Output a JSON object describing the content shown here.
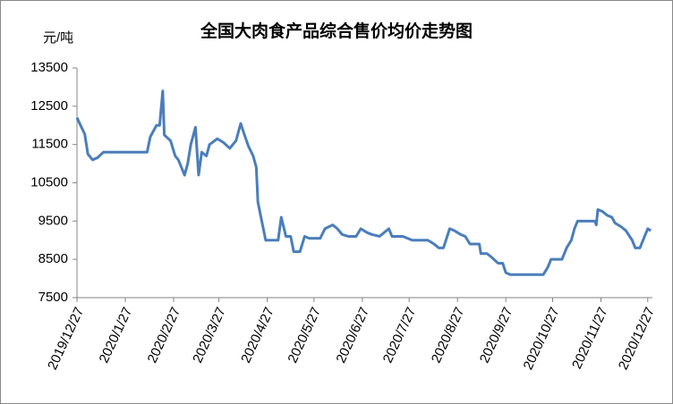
{
  "chart_data": {
    "type": "line",
    "title": "全国大肉食产品综合售价均价走势图",
    "y_label": "元/吨",
    "x": [
      "2019/12/27",
      "2020/1/1",
      "2020/1/3",
      "2020/1/6",
      "2020/1/9",
      "2020/1/13",
      "2020/2/10",
      "2020/2/12",
      "2020/2/16",
      "2020/2/18",
      "2020/2/20",
      "2020/2/21",
      "2020/2/25",
      "2020/2/28",
      "2020/3/1",
      "2020/3/3",
      "2020/3/5",
      "2020/3/7",
      "2020/3/9",
      "2020/3/12",
      "2020/3/14",
      "2020/3/16",
      "2020/3/19",
      "2020/3/21",
      "2020/3/26",
      "2020/3/30",
      "2020/4/3",
      "2020/4/7",
      "2020/4/10",
      "2020/4/12",
      "2020/4/15",
      "2020/4/18",
      "2020/4/20",
      "2020/4/21",
      "2020/4/23",
      "2020/4/24",
      "2020/4/26",
      "2020/5/4",
      "2020/5/6",
      "2020/5/9",
      "2020/5/12",
      "2020/5/14",
      "2020/5/18",
      "2020/5/21",
      "2020/5/24",
      "2020/5/31",
      "2020/6/3",
      "2020/6/8",
      "2020/6/11",
      "2020/6/14",
      "2020/6/18",
      "2020/6/23",
      "2020/6/26",
      "2020/6/30",
      "2020/7/3",
      "2020/7/8",
      "2020/7/14",
      "2020/7/16",
      "2020/7/23",
      "2020/7/29",
      "2020/8/8",
      "2020/8/12",
      "2020/8/15",
      "2020/8/18",
      "2020/8/22",
      "2020/8/25",
      "2020/8/29",
      "2020/9/1",
      "2020/9/4",
      "2020/9/10",
      "2020/9/11",
      "2020/9/15",
      "2020/9/18",
      "2020/9/22",
      "2020/9/25",
      "2020/9/27",
      "2020/9/30",
      "2020/10/21",
      "2020/10/24",
      "2020/10/26",
      "2020/11/2",
      "2020/11/5",
      "2020/11/8",
      "2020/11/10",
      "2020/11/12",
      "2020/11/23",
      "2020/11/24",
      "2020/11/25",
      "2020/11/28",
      "2020/12/1",
      "2020/12/4",
      "2020/12/6",
      "2020/12/10",
      "2020/12/13",
      "2020/12/17",
      "2020/12/19",
      "2020/12/22",
      "2020/12/25",
      "2020/12/27",
      "2020/12/29"
    ],
    "series": [
      {
        "color": "#4a7ebb",
        "values": [
          12200,
          11770,
          11250,
          11100,
          11150,
          11300,
          11300,
          11700,
          12000,
          12000,
          12900,
          11750,
          11600,
          11200,
          11100,
          10900,
          10700,
          11000,
          11500,
          11950,
          10700,
          11300,
          11200,
          11500,
          11650,
          11550,
          11400,
          11600,
          12050,
          11800,
          11450,
          11200,
          10900,
          10000,
          9600,
          9400,
          9000,
          9000,
          9600,
          9100,
          9100,
          8700,
          8700,
          9100,
          9050,
          9050,
          9300,
          9400,
          9300,
          9150,
          9100,
          9100,
          9300,
          9200,
          9150,
          9100,
          9300,
          9100,
          9100,
          9000,
          9000,
          8900,
          8800,
          8800,
          9300,
          9250,
          9150,
          9100,
          8900,
          8900,
          8650,
          8650,
          8550,
          8400,
          8400,
          8150,
          8100,
          8100,
          8300,
          8500,
          8500,
          8800,
          9000,
          9300,
          9500,
          9500,
          9400,
          9800,
          9750,
          9650,
          9600,
          9450,
          9350,
          9250,
          9000,
          8800,
          8800,
          9100,
          9300,
          9250
        ]
      }
    ],
    "xlim": [
      "2019/12/27",
      "2020/12/30"
    ],
    "xticks": [
      "2019/12/27",
      "2020/1/27",
      "2020/2/27",
      "2020/3/27",
      "2020/4/27",
      "2020/5/27",
      "2020/6/27",
      "2020/7/27",
      "2020/8/27",
      "2020/9/27",
      "2020/10/27",
      "2020/11/27",
      "2020/12/27"
    ],
    "ylim": [
      7500,
      13500
    ],
    "yticks": [
      7500,
      8500,
      9500,
      10500,
      11500,
      12500,
      13500
    ],
    "grid": false
  }
}
